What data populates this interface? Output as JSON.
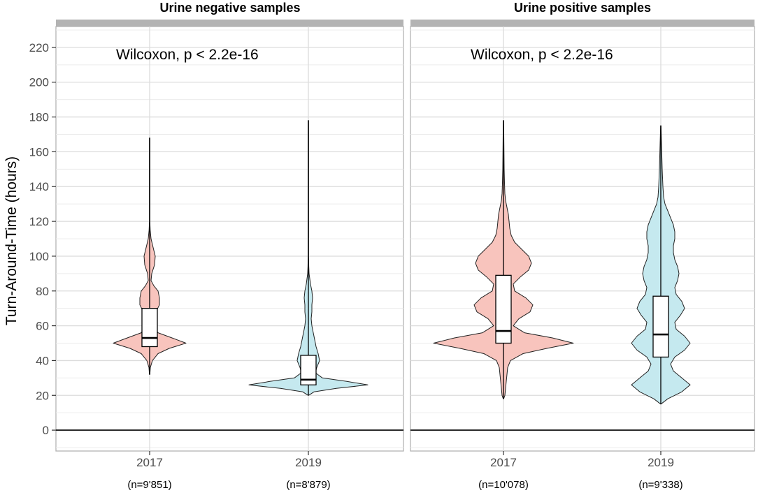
{
  "chart_data": {
    "type": "violin",
    "ylabel": "Turn-Around-Time (hours)",
    "ylim": [
      -12,
      232
    ],
    "yticks": [
      0,
      20,
      40,
      60,
      80,
      100,
      120,
      140,
      160,
      180,
      200,
      220
    ],
    "categories": [
      "2017",
      "2019"
    ],
    "colors": {
      "2017": "#f8c4bd",
      "2019": "#c5e9ef"
    },
    "hline": 0,
    "panels": [
      {
        "title": "Urine negative samples",
        "annotation": "Wilcoxon, p < 2.2e-16",
        "groups": [
          {
            "year": "2017",
            "n_label": "(n=9'851)",
            "box": {
              "q1": 48,
              "median": 53,
              "q3": 70
            },
            "whisker": {
              "min": 32,
              "max": 168
            },
            "violin": [
              [
                32,
                0.3
              ],
              [
                36,
                1
              ],
              [
                40,
                4
              ],
              [
                44,
                12
              ],
              [
                47,
                28
              ],
              [
                50,
                52
              ],
              [
                53,
                32
              ],
              [
                56,
                12
              ],
              [
                60,
                5
              ],
              [
                64,
                6
              ],
              [
                68,
                9
              ],
              [
                72,
                14
              ],
              [
                76,
                14
              ],
              [
                80,
                12
              ],
              [
                83,
                6
              ],
              [
                86,
                2
              ],
              [
                90,
                3
              ],
              [
                95,
                7
              ],
              [
                100,
                8
              ],
              [
                105,
                5
              ],
              [
                110,
                2
              ],
              [
                115,
                0.8
              ],
              [
                120,
                0.3
              ],
              [
                168,
                0.3
              ]
            ]
          },
          {
            "year": "2019",
            "n_label": "(n=8'879)",
            "box": {
              "q1": 26,
              "median": 29,
              "q3": 43
            },
            "whisker": {
              "min": 20,
              "max": 178
            },
            "violin": [
              [
                20,
                0.3
              ],
              [
                22,
                8
              ],
              [
                24,
                40
              ],
              [
                26,
                85
              ],
              [
                28,
                55
              ],
              [
                30,
                20
              ],
              [
                33,
                10
              ],
              [
                36,
                12
              ],
              [
                40,
                16
              ],
              [
                44,
                14
              ],
              [
                48,
                11
              ],
              [
                52,
                9
              ],
              [
                56,
                7
              ],
              [
                60,
                5
              ],
              [
                64,
                4
              ],
              [
                68,
                5
              ],
              [
                72,
                5
              ],
              [
                76,
                6
              ],
              [
                80,
                5
              ],
              [
                84,
                3
              ],
              [
                90,
                1
              ],
              [
                94,
                0.6
              ],
              [
                100,
                0.3
              ],
              [
                178,
                0.3
              ]
            ]
          }
        ]
      },
      {
        "title": "Urine positive samples",
        "annotation": "Wilcoxon, p < 2.2e-16",
        "groups": [
          {
            "year": "2017",
            "n_label": "(n=10'078)",
            "box": {
              "q1": 50,
              "median": 57,
              "q3": 89
            },
            "whisker": {
              "min": 18,
              "max": 178
            },
            "violin": [
              [
                18,
                0.3
              ],
              [
                20,
                2
              ],
              [
                24,
                3
              ],
              [
                28,
                4
              ],
              [
                32,
                5
              ],
              [
                36,
                6
              ],
              [
                40,
                10
              ],
              [
                44,
                28
              ],
              [
                47,
                62
              ],
              [
                50,
                100
              ],
              [
                53,
                70
              ],
              [
                56,
                30
              ],
              [
                60,
                14
              ],
              [
                64,
                22
              ],
              [
                68,
                38
              ],
              [
                72,
                42
              ],
              [
                76,
                32
              ],
              [
                80,
                16
              ],
              [
                84,
                14
              ],
              [
                88,
                24
              ],
              [
                92,
                36
              ],
              [
                96,
                40
              ],
              [
                100,
                36
              ],
              [
                104,
                26
              ],
              [
                108,
                16
              ],
              [
                112,
                11
              ],
              [
                116,
                9
              ],
              [
                120,
                8
              ],
              [
                124,
                7
              ],
              [
                128,
                5
              ],
              [
                132,
                3
              ],
              [
                136,
                2
              ],
              [
                142,
                1.5
              ],
              [
                150,
                1
              ],
              [
                178,
                0.3
              ]
            ]
          },
          {
            "year": "2019",
            "n_label": "(n=9'338)",
            "box": {
              "q1": 42,
              "median": 55,
              "q3": 77
            },
            "whisker": {
              "min": 15,
              "max": 175
            },
            "violin": [
              [
                15,
                0.3
              ],
              [
                18,
                10
              ],
              [
                22,
                30
              ],
              [
                26,
                42
              ],
              [
                30,
                30
              ],
              [
                34,
                18
              ],
              [
                38,
                14
              ],
              [
                42,
                20
              ],
              [
                46,
                34
              ],
              [
                50,
                42
              ],
              [
                54,
                34
              ],
              [
                58,
                22
              ],
              [
                62,
                20
              ],
              [
                66,
                28
              ],
              [
                70,
                34
              ],
              [
                74,
                30
              ],
              [
                78,
                22
              ],
              [
                82,
                20
              ],
              [
                86,
                24
              ],
              [
                90,
                26
              ],
              [
                94,
                24
              ],
              [
                98,
                20
              ],
              [
                102,
                18
              ],
              [
                106,
                18
              ],
              [
                110,
                20
              ],
              [
                114,
                20
              ],
              [
                118,
                18
              ],
              [
                122,
                14
              ],
              [
                126,
                10
              ],
              [
                130,
                6
              ],
              [
                134,
                4
              ],
              [
                140,
                3
              ],
              [
                150,
                2
              ],
              [
                175,
                0.3
              ]
            ]
          }
        ]
      }
    ]
  }
}
